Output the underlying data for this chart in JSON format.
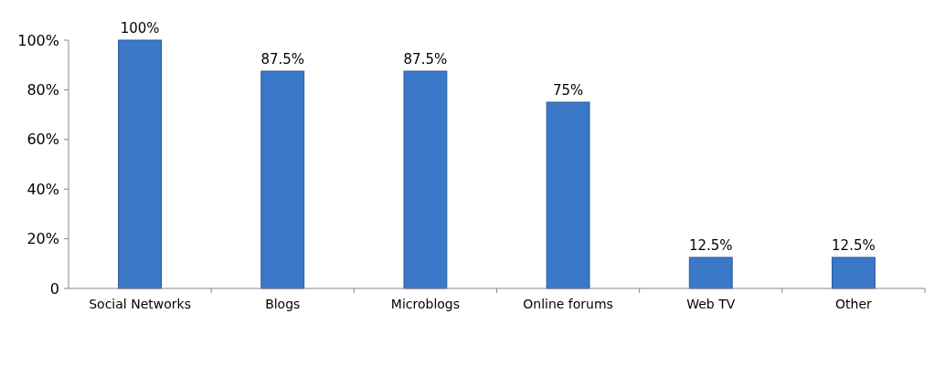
{
  "chart_data": {
    "type": "bar",
    "categories": [
      "Social Networks",
      "Blogs",
      "Microblogs",
      "Online forums",
      "Web TV",
      "Other"
    ],
    "values": [
      100,
      87.5,
      87.5,
      75,
      12.5,
      12.5
    ],
    "value_labels": [
      "100%",
      "87.5%",
      "87.5%",
      "75%",
      "12.5%",
      "12.5%"
    ],
    "color": "#3b78c8",
    "ylim": [
      0,
      100
    ],
    "yticks": [
      {
        "value": 0,
        "label": "0"
      },
      {
        "value": 20,
        "label": "20%"
      },
      {
        "value": 40,
        "label": "40%"
      },
      {
        "value": 60,
        "label": "60%"
      },
      {
        "value": 80,
        "label": "80%"
      },
      {
        "value": 100,
        "label": "100%"
      }
    ],
    "grid": false
  }
}
